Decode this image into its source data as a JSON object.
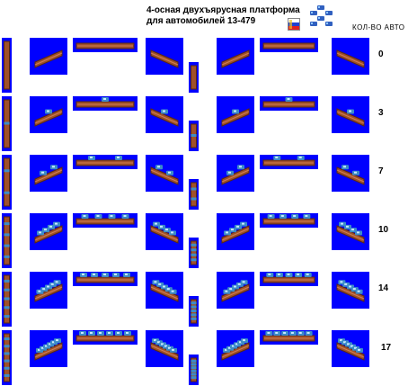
{
  "header": {
    "title_line1": "4-осная двухъярусная платформа",
    "title_line2": "для автомобилей 13-479",
    "count_label": "КОЛ-ВО АВТО"
  },
  "icons": {
    "flag": "tricolor-flag-icon",
    "wagon_dots": "blue-wagon-dots-icon"
  },
  "colors": {
    "background_tile": "#0000ff",
    "platform": "#a0502a",
    "car_roof": "#3c8cc8"
  },
  "rows": [
    {
      "count": "0"
    },
    {
      "count": "3"
    },
    {
      "count": "7"
    },
    {
      "count": "10"
    },
    {
      "count": "14"
    },
    {
      "count": "17"
    }
  ]
}
